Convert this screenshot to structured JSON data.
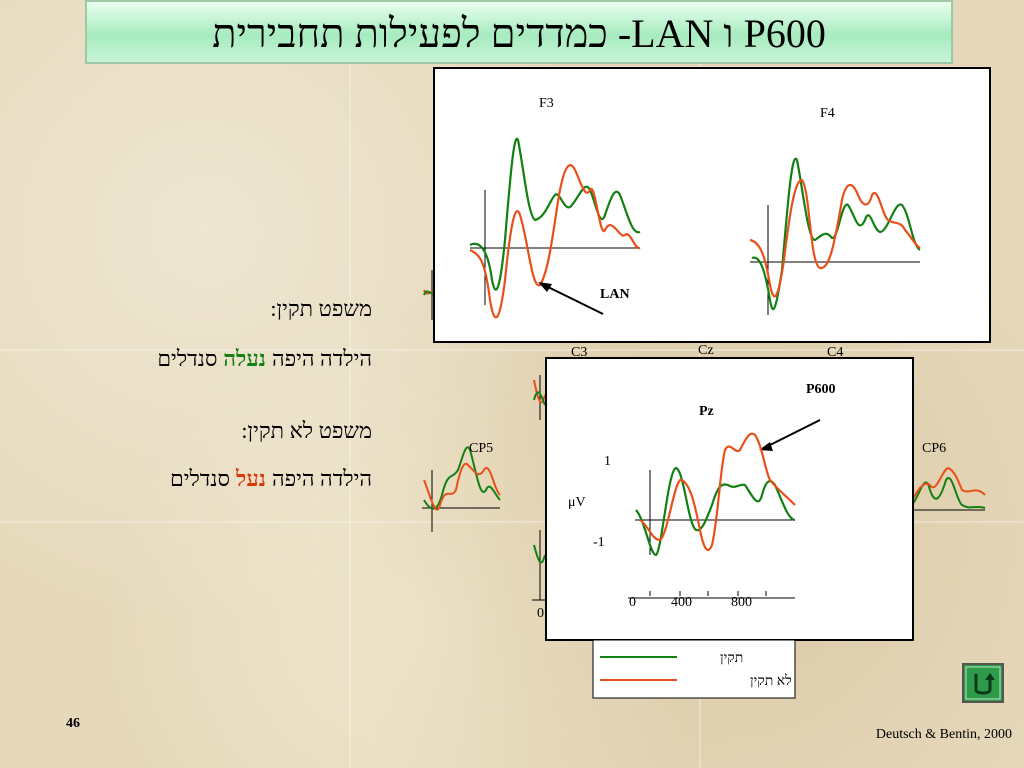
{
  "header": {
    "title": "P600 ו LAN- כמדדים לפעילות תחבירית"
  },
  "sentences": [
    {
      "label": "משפט תקין:",
      "parts": [
        "הילדה היפה",
        "נעלה",
        "סנדלים"
      ]
    },
    {
      "label": "משפט לא תקין:",
      "parts": [
        "הילדה היפה",
        "נעל",
        "סנדלים"
      ]
    }
  ],
  "figure": {
    "electrodes": [
      "F3",
      "F4",
      "C3",
      "Cz",
      "C4",
      "CP5",
      "CP6",
      "Pz"
    ],
    "annotations": [
      "LAN",
      "P600"
    ],
    "y_axis": {
      "label": "μV",
      "ticks": [
        "1",
        "-1"
      ]
    },
    "x_axis": {
      "ticks": [
        "0",
        "400",
        "800"
      ]
    },
    "background_tick": "0",
    "legend": [
      "תקין",
      "לא תקין"
    ]
  },
  "footer": {
    "page": "46",
    "citation": "Deutsch & Bentin, 2000"
  }
}
